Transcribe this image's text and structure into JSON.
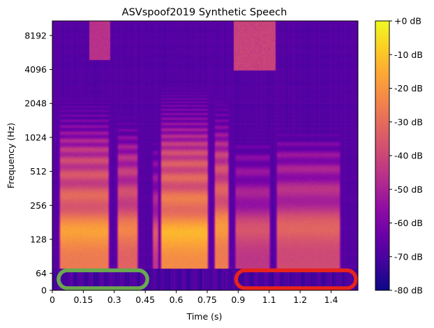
{
  "chart_data": {
    "type": "heatmap",
    "title": "ASVspoof2019 Synthetic Speech",
    "xlabel": "Time (s)",
    "ylabel": "Frequency (Hz)",
    "x_ticks": [
      "0",
      "0.15",
      "0.3",
      "0.45",
      "0.6",
      "0.75",
      "0.9",
      "1.1",
      "1.2",
      "1.4"
    ],
    "x_tick_values": [
      0,
      0.15,
      0.3,
      0.45,
      0.6,
      0.75,
      0.9,
      1.05,
      1.2,
      1.35
    ],
    "xlim": [
      0,
      1.48
    ],
    "y_scale": "symlog",
    "y_ticks": [
      "0",
      "64",
      "128",
      "256",
      "512",
      "1024",
      "2048",
      "4096",
      "8192"
    ],
    "y_tick_values": [
      0,
      64,
      128,
      256,
      512,
      1024,
      2048,
      4096,
      8192
    ],
    "ylim": [
      0,
      11025
    ],
    "colormap": "plasma",
    "colorbar": {
      "label_values": [
        0,
        -10,
        -20,
        -30,
        -40,
        -50,
        -60,
        -70,
        -80
      ],
      "labels": [
        "+0 dB",
        "-10 dB",
        "-20 dB",
        "-30 dB",
        "-40 dB",
        "-50 dB",
        "-60 dB",
        "-70 dB",
        "-80 dB"
      ],
      "range": [
        -80,
        0
      ]
    },
    "grid": false,
    "segments": [
      {
        "t0": 0.03,
        "t1": 0.28,
        "level": -22,
        "f0": 160
      },
      {
        "t0": 0.31,
        "t1": 0.42,
        "level": -28,
        "f0": 170
      },
      {
        "t0": 0.48,
        "t1": 0.52,
        "level": -40,
        "f0": 150
      },
      {
        "t0": 0.52,
        "t1": 0.76,
        "level": -18,
        "f0": 150
      },
      {
        "t0": 0.78,
        "t1": 0.86,
        "level": -22,
        "f0": 180
      },
      {
        "t0": 0.88,
        "t1": 1.06,
        "level": -40,
        "f0": 170
      },
      {
        "t0": 1.08,
        "t1": 1.4,
        "level": -35,
        "f0": 180
      }
    ],
    "annotations": [
      {
        "type": "rounded-rect",
        "color": "#6aa84f",
        "t0": 0.03,
        "t1": 0.46,
        "f0": 8,
        "f1": 68
      },
      {
        "type": "rounded-rect",
        "color": "#e8231b",
        "t0": 0.89,
        "t1": 1.47,
        "f0": 8,
        "f1": 68
      }
    ]
  }
}
